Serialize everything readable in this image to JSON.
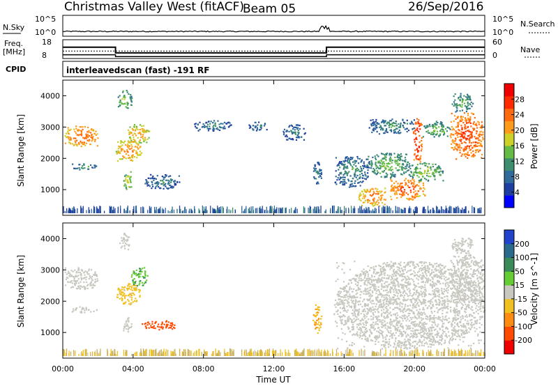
{
  "header": {
    "title": "Christmas Valley West (fitACF)",
    "beam": "Beam 05",
    "date": "26/Sep/2016"
  },
  "top_panels": {
    "nsky_label": "N.Sky",
    "nsky_ticks": [
      "10^5",
      "10^0"
    ],
    "nsearch_label": "N.Search",
    "nsearch_ticks": [
      "10^5",
      "10^0"
    ],
    "freq_label_1": "Freq.",
    "freq_label_2": "[MHz]",
    "freq_ticks": [
      "18",
      "8"
    ],
    "nave_label": "Nave",
    "nave_ticks": [
      "60",
      "0"
    ],
    "cpid_label": "CPID",
    "cpid_text": "interleavedscan (fast) -191 RF"
  },
  "colors": {
    "power": [
      "#0000ff",
      "#1f3fa0",
      "#2f6a9a",
      "#3c8e6e",
      "#66bb44",
      "#ccd12a",
      "#ff9b1a",
      "#ff6a0f",
      "#ff2a00",
      "#ee0000"
    ],
    "velocity": [
      "#2244cc",
      "#2a6a8a",
      "#3a8a5a",
      "#66cc33",
      "#c8c8c0",
      "#f0c020",
      "#ff8c10",
      "#ff4a00",
      "#ee0000"
    ],
    "ground": "#c8c8c0"
  },
  "chart_data": [
    {
      "type": "line",
      "panel": "N.Sky / N.Search",
      "ylim_label": [
        "10^0",
        "10^5"
      ],
      "x": [
        "00:00",
        "04:00",
        "08:00",
        "12:00",
        "14:30",
        "15:00",
        "16:00",
        "20:00",
        "00:00"
      ],
      "series": [
        {
          "values": [
            0.22,
            0.24,
            0.23,
            0.25,
            0.35,
            0.25,
            0.23,
            0.24,
            0.22
          ]
        }
      ]
    },
    {
      "type": "line",
      "panel": "Freq. [MHz] / Nave",
      "ylim": [
        8,
        18
      ],
      "x": [
        "00:00",
        "03:00",
        "03:00",
        "15:00",
        "15:00",
        "24:00"
      ],
      "series": [
        {
          "values": [
            14,
            14,
            11,
            11,
            14,
            14
          ]
        },
        {
          "values": [
            12,
            12,
            12,
            12,
            12,
            12
          ]
        },
        {
          "values": [
            10,
            10,
            9,
            9,
            10,
            10
          ]
        }
      ]
    },
    {
      "type": "heatmap",
      "panel": "Power",
      "xlabel": "",
      "ylabel": "Slant Range [km]",
      "xlim_hours": [
        0,
        24
      ],
      "ylim": [
        180,
        4500
      ],
      "yticks": [
        "1000",
        "2000",
        "3000",
        "4000"
      ],
      "colorbar_label": "Power [dB]",
      "colorbar_ticks": [
        "28",
        "24",
        "20",
        "16",
        "12",
        "8",
        "4"
      ],
      "clim": [
        0,
        30
      ],
      "blobs": [
        {
          "t0": 0.1,
          "t1": 2.0,
          "r0": 2400,
          "r1": 3050,
          "v": 21
        },
        {
          "t0": 0.5,
          "t1": 1.9,
          "r0": 1650,
          "r1": 1850,
          "v": 10
        },
        {
          "t0": 3.0,
          "t1": 4.5,
          "r0": 1900,
          "r1": 2600,
          "v": 19
        },
        {
          "t0": 3.6,
          "t1": 4.9,
          "r0": 2500,
          "r1": 3100,
          "v": 18
        },
        {
          "t0": 3.1,
          "t1": 3.9,
          "r0": 3600,
          "r1": 4200,
          "v": 13
        },
        {
          "t0": 3.4,
          "t1": 3.9,
          "r0": 1000,
          "r1": 1600,
          "v": 15
        },
        {
          "t0": 4.6,
          "t1": 6.6,
          "r0": 1050,
          "r1": 1500,
          "v": 8
        },
        {
          "t0": 7.4,
          "t1": 9.6,
          "r0": 2900,
          "r1": 3250,
          "v": 8
        },
        {
          "t0": 10.5,
          "t1": 11.6,
          "r0": 2900,
          "r1": 3200,
          "v": 8
        },
        {
          "t0": 12.5,
          "t1": 13.8,
          "r0": 2600,
          "r1": 3100,
          "v": 8
        },
        {
          "t0": 14.2,
          "t1": 14.7,
          "r0": 1200,
          "r1": 1900,
          "v": 8
        },
        {
          "t0": 15.4,
          "t1": 17.4,
          "r0": 1100,
          "r1": 2100,
          "v": 9
        },
        {
          "t0": 16.8,
          "t1": 18.4,
          "r0": 500,
          "r1": 1100,
          "v": 20
        },
        {
          "t0": 17.3,
          "t1": 19.7,
          "r0": 1400,
          "r1": 2200,
          "v": 12
        },
        {
          "t0": 18.6,
          "t1": 20.6,
          "r0": 700,
          "r1": 1400,
          "v": 22
        },
        {
          "t0": 19.6,
          "t1": 21.6,
          "r0": 1300,
          "r1": 1900,
          "v": 13
        },
        {
          "t0": 19.9,
          "t1": 20.4,
          "r0": 1900,
          "r1": 3300,
          "v": 25
        },
        {
          "t0": 17.4,
          "t1": 20.0,
          "r0": 2800,
          "r1": 3300,
          "v": 9
        },
        {
          "t0": 20.4,
          "t1": 22.0,
          "r0": 2700,
          "r1": 3200,
          "v": 12
        },
        {
          "t0": 22.0,
          "t1": 23.9,
          "r0": 2000,
          "r1": 3500,
          "v": 23
        },
        {
          "t0": 22.1,
          "t1": 23.3,
          "r0": 3500,
          "r1": 4100,
          "v": 11
        },
        {
          "t0": 0.0,
          "t1": 24.0,
          "r0": 180,
          "r1": 420,
          "v": 8
        }
      ]
    },
    {
      "type": "heatmap",
      "panel": "Velocity",
      "xlabel": "Time UT",
      "ylabel": "Slant Range [km]",
      "xticks": [
        "00:00",
        "04:00",
        "08:00",
        "12:00",
        "16:00",
        "20:00",
        "00:00"
      ],
      "yticks": [
        "1000",
        "2000",
        "3000",
        "4000"
      ],
      "colorbar_label": "Velocity [m s^-1]",
      "colorbar_ticks": [
        "200",
        "100",
        "50",
        "15",
        "-15",
        "-50",
        "-100",
        "-200"
      ],
      "clim": [
        -250,
        250
      ],
      "blobs": [
        {
          "t0": 0.1,
          "t1": 2.0,
          "r0": 2400,
          "r1": 3100,
          "v": 0
        },
        {
          "t0": 0.5,
          "t1": 1.9,
          "r0": 1650,
          "r1": 1850,
          "v": 0
        },
        {
          "t0": 3.0,
          "t1": 4.4,
          "r0": 1900,
          "r1": 2600,
          "v": -30
        },
        {
          "t0": 3.8,
          "t1": 4.8,
          "r0": 2500,
          "r1": 3100,
          "v": 40
        },
        {
          "t0": 3.2,
          "t1": 3.8,
          "r0": 3600,
          "r1": 4200,
          "v": 0
        },
        {
          "t0": 3.4,
          "t1": 3.9,
          "r0": 1000,
          "r1": 1500,
          "v": 0
        },
        {
          "t0": 4.4,
          "t1": 6.4,
          "r0": 1100,
          "r1": 1400,
          "v": -150
        },
        {
          "t0": 14.2,
          "t1": 14.7,
          "r0": 1000,
          "r1": 1900,
          "v": -40
        },
        {
          "t0": 15.4,
          "t1": 24.0,
          "r0": 500,
          "r1": 3300,
          "v": 0
        },
        {
          "t0": 22.0,
          "t1": 23.9,
          "r0": 2000,
          "r1": 3500,
          "v": 0
        },
        {
          "t0": 22.1,
          "t1": 23.3,
          "r0": 3500,
          "r1": 4100,
          "v": 0
        },
        {
          "t0": 0.0,
          "t1": 24.0,
          "r0": 180,
          "r1": 420,
          "v": -30
        }
      ]
    }
  ]
}
